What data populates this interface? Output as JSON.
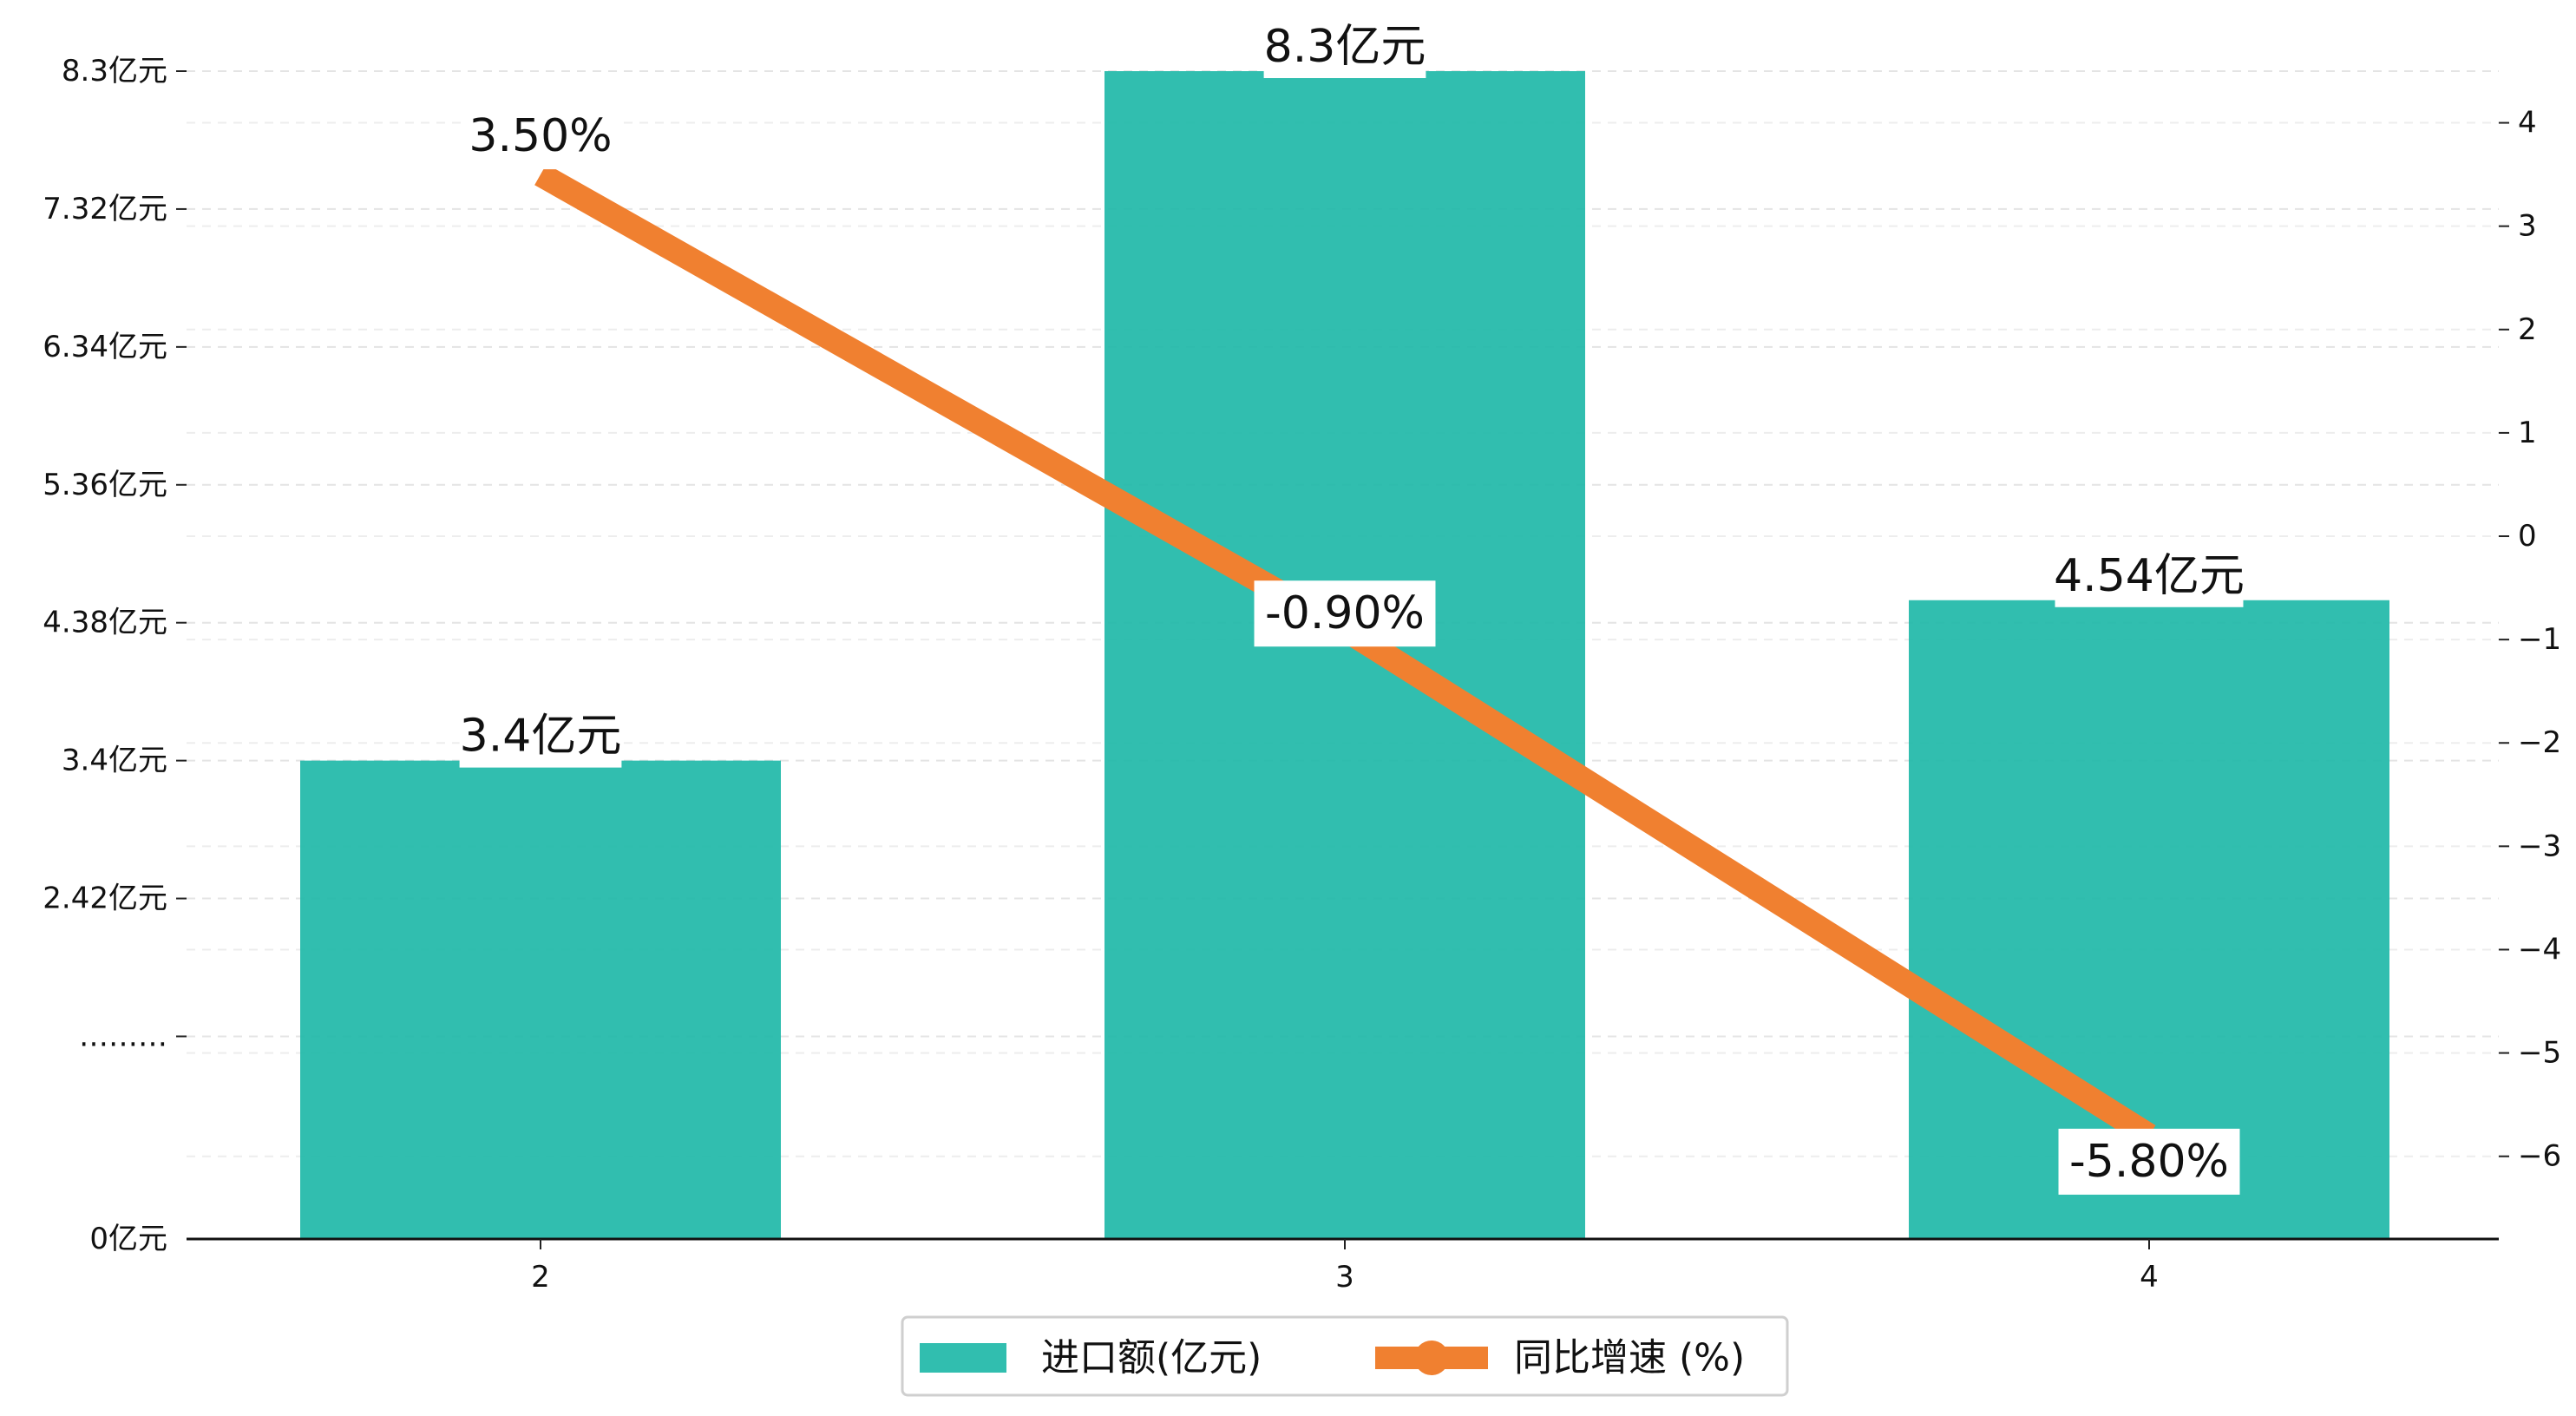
{
  "chart_data": {
    "type": "bar",
    "categories": [
      "2",
      "3",
      "4"
    ],
    "series": [
      {
        "name": "进口额(亿元)",
        "kind": "bar",
        "axis": "left",
        "color": "#20B9A8",
        "values": [
          3.4,
          8.3,
          4.54
        ],
        "data_labels": [
          "3.4亿元",
          "8.3亿元",
          "4.54亿元"
        ]
      },
      {
        "name": "同比增速 (%)",
        "kind": "line",
        "axis": "right",
        "color": "#F08030",
        "values": [
          3.5,
          -0.9,
          -5.8
        ],
        "data_labels": [
          "3.50%",
          "-0.90%",
          "-5.80%"
        ]
      }
    ],
    "left_axis": {
      "ylim": [
        0,
        8.3
      ],
      "ticks": [
        0,
        1.44,
        2.42,
        3.4,
        4.38,
        5.36,
        6.34,
        7.32,
        8.3
      ],
      "tick_labels": [
        "0亿元",
        "………",
        "2.42亿元",
        "3.4亿元",
        "4.38亿元",
        "5.36亿元",
        "6.34亿元",
        "7.32亿元",
        "8.3亿元"
      ]
    },
    "right_axis": {
      "ylim": [
        -6.8,
        4.5
      ],
      "ticks": [
        -6,
        -5,
        -4,
        -3,
        -2,
        -1,
        0,
        1,
        2,
        3,
        4
      ],
      "tick_labels": [
        "−6",
        "−5",
        "−4",
        "−3",
        "−2",
        "−1",
        "0",
        "1",
        "2",
        "3",
        "4"
      ]
    },
    "grid": "horizontal-dashed",
    "legend_position": "bottom-center"
  }
}
